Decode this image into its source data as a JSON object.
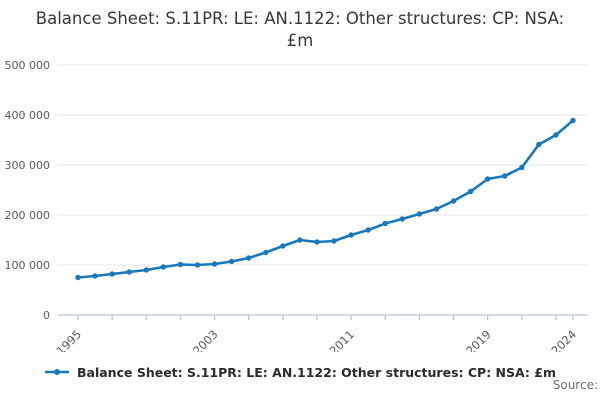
{
  "title": "Balance Sheet: S.11PR: LE: AN.1122: Other structures: CP: NSA: £m",
  "legend": {
    "label": "Balance Sheet: S.11PR: LE: AN.1122: Other structures: CP: NSA: £m"
  },
  "source_label": "Source:",
  "colors": {
    "line": "#1878bc",
    "axis": "#b8c4e0",
    "grid": "#e5e5e5",
    "tick_text": "#5a5a5a",
    "title_text": "#383838"
  },
  "chart_data": {
    "type": "line",
    "title": "Balance Sheet: S.11PR: LE: AN.1122: Other structures: CP: NSA: £m",
    "x": [
      1995,
      1996,
      1997,
      1998,
      1999,
      2000,
      2001,
      2002,
      2003,
      2004,
      2005,
      2006,
      2007,
      2008,
      2009,
      2010,
      2011,
      2012,
      2013,
      2014,
      2015,
      2016,
      2017,
      2018,
      2019,
      2020,
      2021,
      2022,
      2023,
      2024
    ],
    "series": [
      {
        "name": "Balance Sheet: S.11PR: LE: AN.1122: Other structures: CP: NSA: £m",
        "values": [
          75000,
          78000,
          82000,
          86000,
          90000,
          96000,
          101000,
          100000,
          102000,
          107000,
          114000,
          125000,
          138000,
          150000,
          146000,
          148000,
          160000,
          170000,
          183000,
          192000,
          202000,
          212000,
          228000,
          247000,
          272000,
          278000,
          295000,
          341000,
          360000,
          389000
        ]
      }
    ],
    "xlabel": "",
    "ylabel": "",
    "ylim": [
      0,
      500000
    ],
    "ytick_step": 100000,
    "ytick_labels": [
      "0",
      "100 000",
      "200 000",
      "300 000",
      "400 000",
      "500 000"
    ],
    "xtick_every_years": 2,
    "xtick_labels_shown": [
      "1995",
      "2003",
      "2011",
      "2019",
      "2024"
    ],
    "grid": "horizontal",
    "legend_position": "bottom",
    "marker": "circle"
  }
}
